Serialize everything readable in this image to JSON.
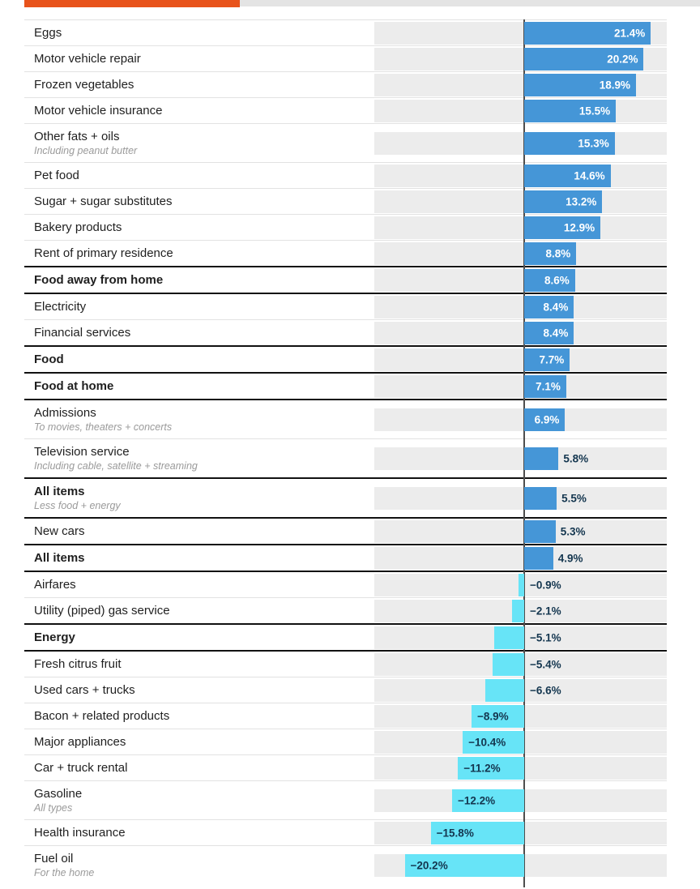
{
  "progress_bar": {
    "fill_color": "#e8531b",
    "track_color": "#e4e4e4",
    "fraction": 0.32
  },
  "chart_data": {
    "type": "bar",
    "orientation": "horizontal",
    "unit": "%",
    "title": "",
    "xlabel": "",
    "ylabel": "",
    "xlim": [
      -25.3,
      24.1
    ],
    "grid": false,
    "legend": "none",
    "positive_color": "#4596d7",
    "negative_color": "#67e4f7",
    "track_color": "#ececec",
    "axis_color": "#4d4d4d",
    "value_label_inside_positive_color": "#ffffff",
    "value_label_dark_color": "#14364f",
    "rows": [
      {
        "label": "Eggs",
        "sub": "",
        "value": 21.4,
        "display": "21.4%",
        "bold": false
      },
      {
        "label": "Motor vehicle repair",
        "sub": "",
        "value": 20.2,
        "display": "20.2%",
        "bold": false
      },
      {
        "label": "Frozen vegetables",
        "sub": "",
        "value": 18.9,
        "display": "18.9%",
        "bold": false
      },
      {
        "label": "Motor vehicle insurance",
        "sub": "",
        "value": 15.5,
        "display": "15.5%",
        "bold": false
      },
      {
        "label": "Other fats + oils",
        "sub": "Including peanut butter",
        "value": 15.3,
        "display": "15.3%",
        "bold": false
      },
      {
        "label": "Pet food",
        "sub": "",
        "value": 14.6,
        "display": "14.6%",
        "bold": false
      },
      {
        "label": "Sugar + sugar substitutes",
        "sub": "",
        "value": 13.2,
        "display": "13.2%",
        "bold": false
      },
      {
        "label": "Bakery products",
        "sub": "",
        "value": 12.9,
        "display": "12.9%",
        "bold": false
      },
      {
        "label": "Rent of primary residence",
        "sub": "",
        "value": 8.8,
        "display": "8.8%",
        "bold": false
      },
      {
        "label": "Food away from home",
        "sub": "",
        "value": 8.6,
        "display": "8.6%",
        "bold": true
      },
      {
        "label": "Electricity",
        "sub": "",
        "value": 8.4,
        "display": "8.4%",
        "bold": false
      },
      {
        "label": "Financial services",
        "sub": "",
        "value": 8.4,
        "display": "8.4%",
        "bold": false
      },
      {
        "label": "Food",
        "sub": "",
        "value": 7.7,
        "display": "7.7%",
        "bold": true
      },
      {
        "label": "Food at home",
        "sub": "",
        "value": 7.1,
        "display": "7.1%",
        "bold": true
      },
      {
        "label": "Admissions",
        "sub": "To movies, theaters + concerts",
        "value": 6.9,
        "display": "6.9%",
        "bold": false
      },
      {
        "label": "Television service",
        "sub": "Including cable, satellite + streaming",
        "value": 5.8,
        "display": "5.8%",
        "bold": false
      },
      {
        "label": "All items",
        "sub": "Less food + energy",
        "value": 5.5,
        "display": "5.5%",
        "bold": true
      },
      {
        "label": "New cars",
        "sub": "",
        "value": 5.3,
        "display": "5.3%",
        "bold": false
      },
      {
        "label": "All items",
        "sub": "",
        "value": 4.9,
        "display": "4.9%",
        "bold": true
      },
      {
        "label": "Airfares",
        "sub": "",
        "value": -0.9,
        "display": "−0.9%",
        "bold": false
      },
      {
        "label": "Utility (piped) gas service",
        "sub": "",
        "value": -2.1,
        "display": "−2.1%",
        "bold": false
      },
      {
        "label": "Energy",
        "sub": "",
        "value": -5.1,
        "display": "−5.1%",
        "bold": true
      },
      {
        "label": "Fresh citrus fruit",
        "sub": "",
        "value": -5.4,
        "display": "−5.4%",
        "bold": false
      },
      {
        "label": "Used cars + trucks",
        "sub": "",
        "value": -6.6,
        "display": "−6.6%",
        "bold": false
      },
      {
        "label": "Bacon + related products",
        "sub": "",
        "value": -8.9,
        "display": "−8.9%",
        "bold": false
      },
      {
        "label": "Major appliances",
        "sub": "",
        "value": -10.4,
        "display": "−10.4%",
        "bold": false
      },
      {
        "label": "Car + truck rental",
        "sub": "",
        "value": -11.2,
        "display": "−11.2%",
        "bold": false
      },
      {
        "label": "Gasoline",
        "sub": "All types",
        "value": -12.2,
        "display": "−12.2%",
        "bold": false
      },
      {
        "label": "Health insurance",
        "sub": "",
        "value": -15.8,
        "display": "−15.8%",
        "bold": false
      },
      {
        "label": "Fuel oil",
        "sub": "For the home",
        "value": -20.2,
        "display": "−20.2%",
        "bold": false
      }
    ]
  }
}
